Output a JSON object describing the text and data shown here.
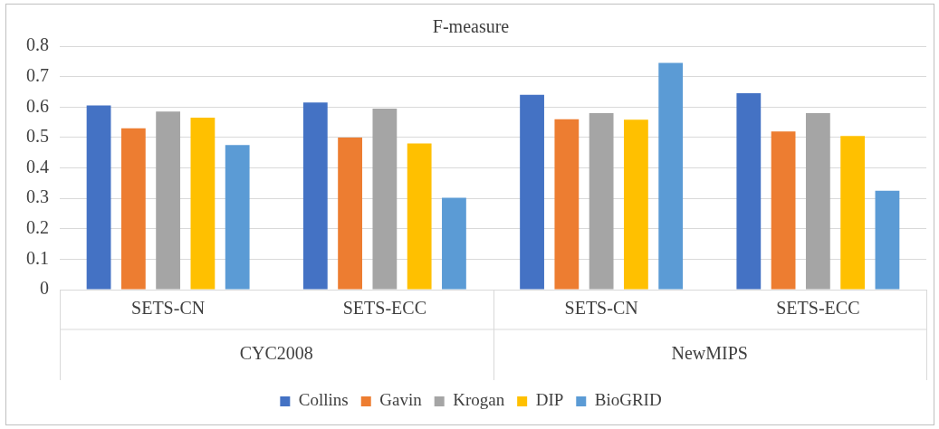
{
  "chart_data": {
    "type": "bar",
    "title": "F-measure",
    "categories": [
      "SETS-CN",
      "SETS-ECC",
      "SETS-CN",
      "SETS-ECC"
    ],
    "annotations": [
      "CYC2008",
      "NewMIPS"
    ],
    "series": [
      {
        "name": "Collins",
        "color": "#4472c4",
        "values": [
          0.605,
          0.615,
          0.64,
          0.645
        ]
      },
      {
        "name": "Gavin",
        "color": "#ed7d31",
        "values": [
          0.53,
          0.5,
          0.56,
          0.52
        ]
      },
      {
        "name": "Krogan",
        "color": "#a5a5a5",
        "values": [
          0.585,
          0.595,
          0.58,
          0.58
        ]
      },
      {
        "name": "DIP",
        "color": "#ffc000",
        "values": [
          0.565,
          0.48,
          0.558,
          0.505
        ]
      },
      {
        "name": "BioGRID",
        "color": "#5b9bd5",
        "values": [
          0.475,
          0.302,
          0.745,
          0.325
        ]
      }
    ],
    "ylim": [
      0,
      0.8
    ],
    "yticks": [
      0,
      0.1,
      0.2,
      0.3,
      0.4,
      0.5,
      0.6,
      0.7,
      0.8
    ],
    "grid": "y",
    "legend": "bottom"
  }
}
